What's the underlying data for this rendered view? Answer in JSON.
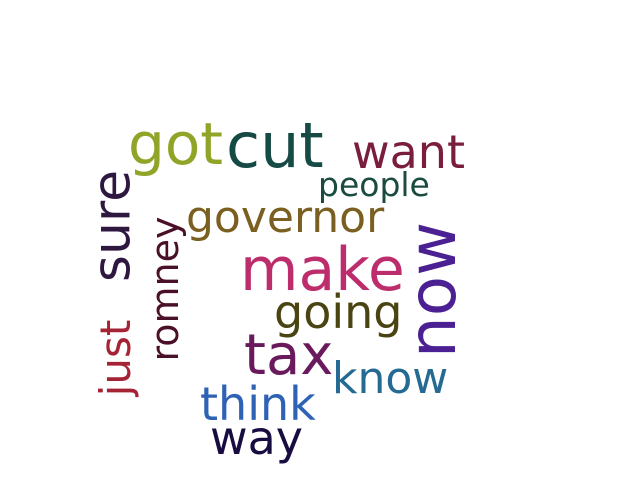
{
  "words": {
    "got": {
      "text": "got",
      "color": "#90a428"
    },
    "cut": {
      "text": "cut",
      "color": "#164a44"
    },
    "want": {
      "text": "want",
      "color": "#7a1e3e"
    },
    "people": {
      "text": "people",
      "color": "#1b4a40"
    },
    "governor": {
      "text": "governor",
      "color": "#7a5f20"
    },
    "sure": {
      "text": "sure",
      "color": "#2e1840"
    },
    "romney": {
      "text": "romney",
      "color": "#4a1028"
    },
    "make": {
      "text": "make",
      "color": "#bd2d6c"
    },
    "now": {
      "text": "now",
      "color": "#4a2092"
    },
    "going": {
      "text": "going",
      "color": "#4a4412"
    },
    "just": {
      "text": "just",
      "color": "#a42436"
    },
    "tax": {
      "text": "tax",
      "color": "#6a1a5c"
    },
    "know": {
      "text": "know",
      "color": "#246a92"
    },
    "think": {
      "text": "think",
      "color": "#2e62b4"
    },
    "way": {
      "text": "way",
      "color": "#180c40"
    }
  }
}
